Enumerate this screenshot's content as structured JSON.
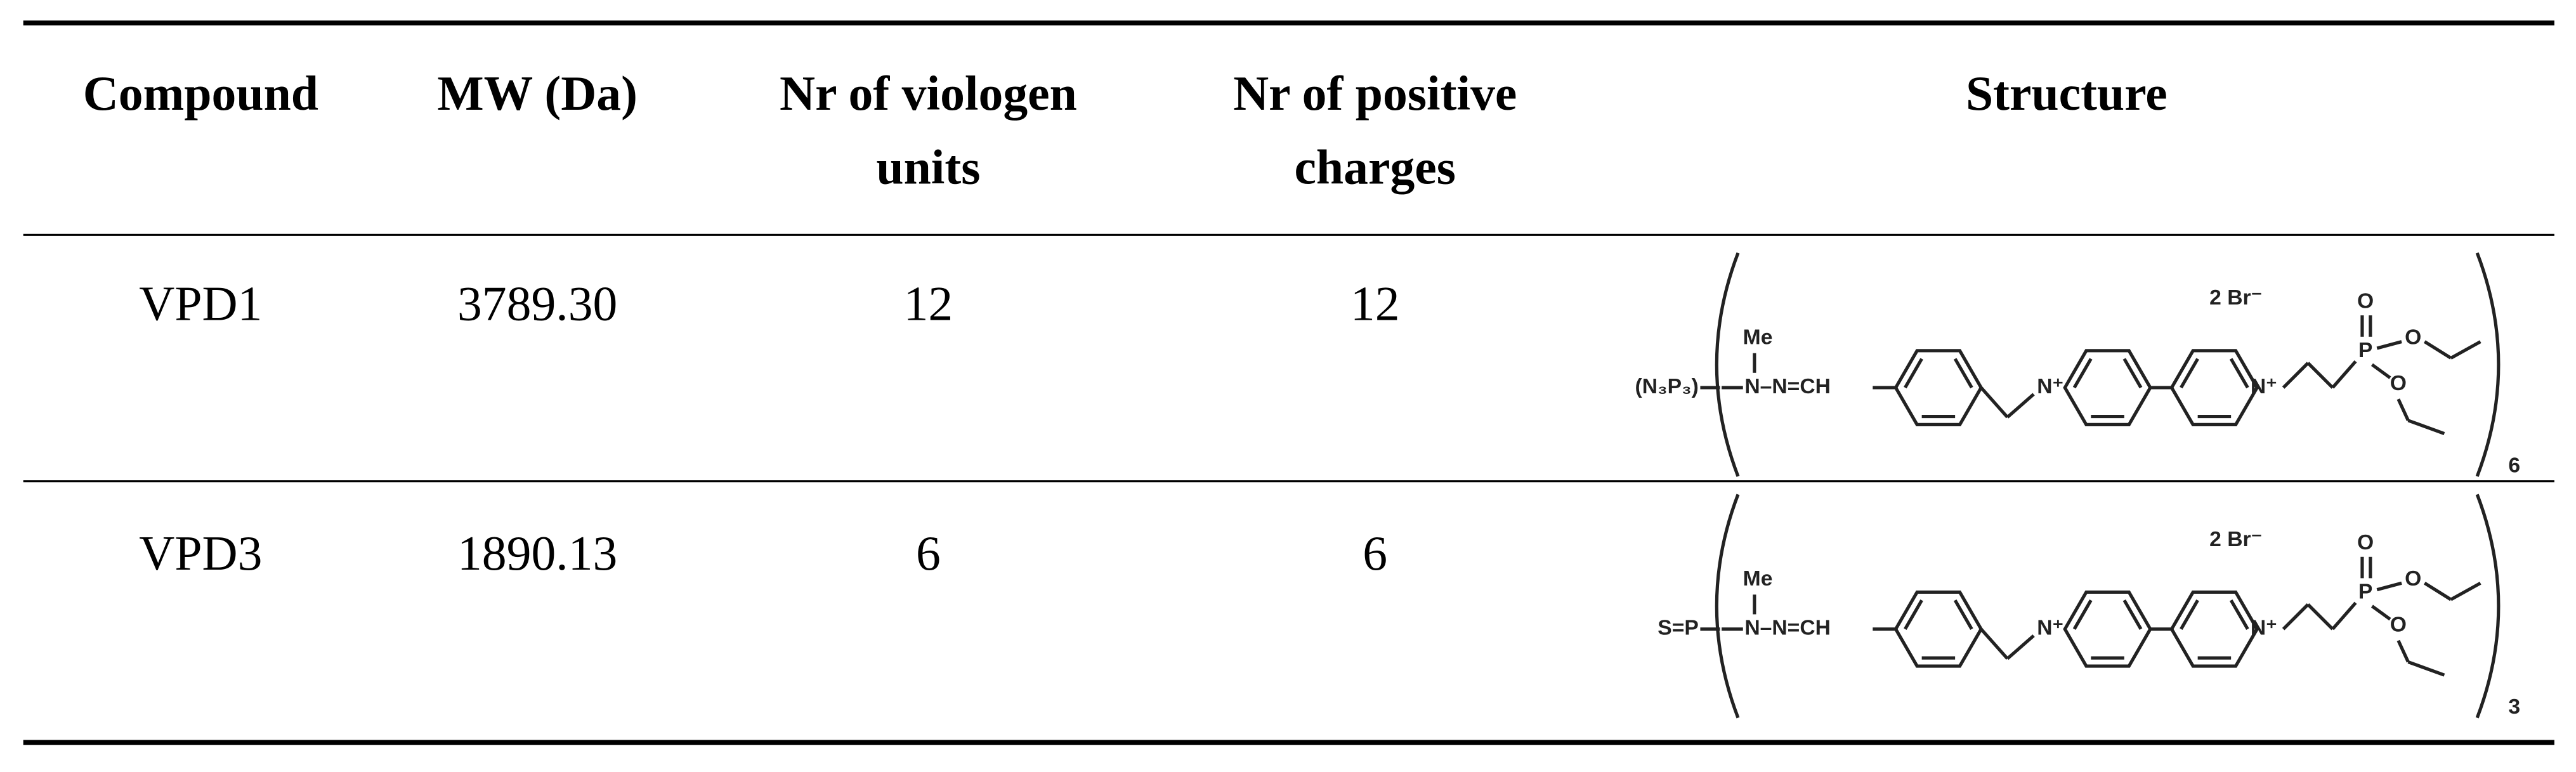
{
  "table": {
    "headers": [
      [
        "Compound"
      ],
      [
        "MW (Da)"
      ],
      [
        "Nr of viologen",
        "units"
      ],
      [
        "Nr of positive",
        "charges"
      ],
      [
        "Structure"
      ]
    ],
    "rows": [
      {
        "compound": "VPD1",
        "mw": "3789.30",
        "viologen_units": "12",
        "positive_charges": "12",
        "structure": {
          "core": "(N₃P₃)",
          "methyl": "Me",
          "linker": "N–N=CH",
          "nitrogen_1": "N⁺",
          "nitrogen_2": "N⁺",
          "counterion": "2 Br⁻",
          "phosphorus": "P",
          "oxygens": [
            "O",
            "O",
            "O"
          ],
          "repeat": "6"
        }
      },
      {
        "compound": "VPD3",
        "mw": "1890.13",
        "viologen_units": "6",
        "positive_charges": "6",
        "structure": {
          "core": "S=P",
          "methyl": "Me",
          "linker": "N–N=CH",
          "nitrogen_1": "N⁺",
          "nitrogen_2": "N⁺",
          "counterion": "2 Br⁻",
          "phosphorus": "P",
          "oxygens": [
            "O",
            "O",
            "O"
          ],
          "repeat": "3"
        }
      }
    ]
  }
}
